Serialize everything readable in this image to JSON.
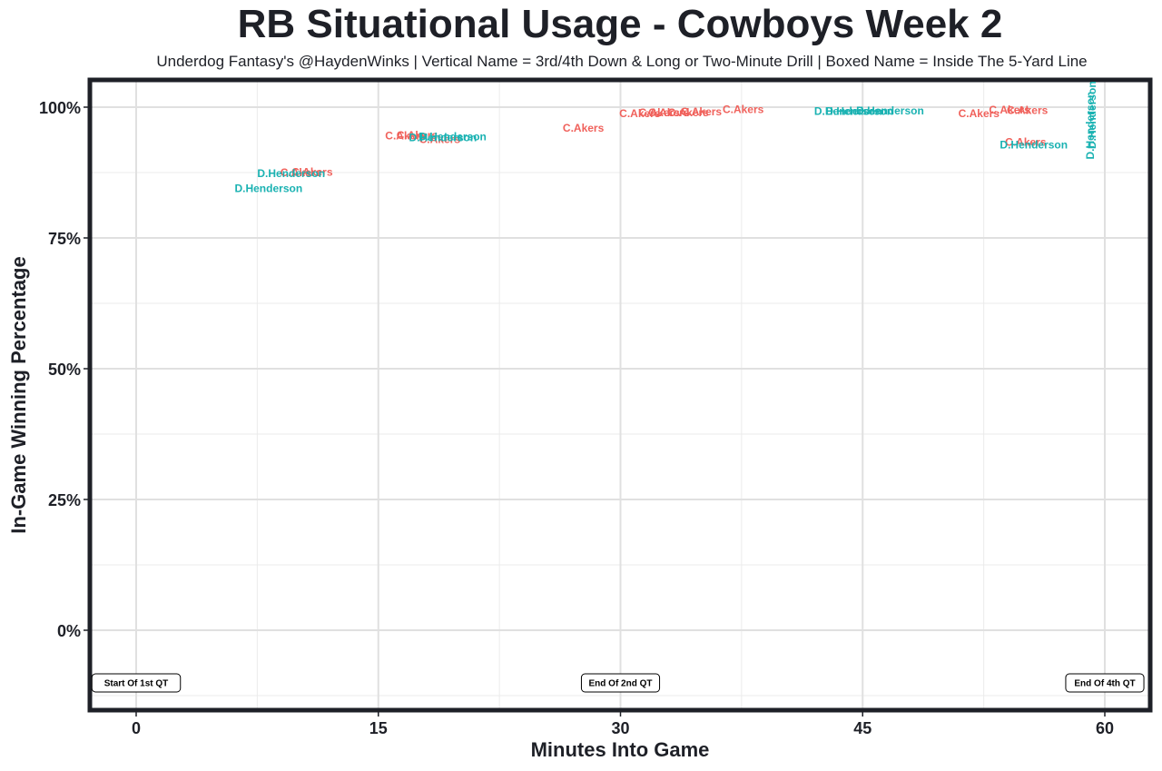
{
  "chart_data": {
    "type": "scatter",
    "title": "RB Situational Usage - Cowboys Week 2",
    "subtitle": "Underdog Fantasy's @HaydenWinks | Vertical Name = 3rd/4th Down & Long or Two-Minute Drill | Boxed Name = Inside The 5-Yard Line",
    "xlabel": "Minutes Into Game",
    "ylabel": "In-Game Winning Percentage",
    "xlim": [
      0,
      60
    ],
    "ylim": [
      -0.15,
      1.05
    ],
    "x_ticks": [
      0,
      15,
      30,
      45,
      60
    ],
    "x_tick_labels": [
      "0",
      "15",
      "30",
      "45",
      "60"
    ],
    "y_ticks": [
      0,
      0.25,
      0.5,
      0.75,
      1.0
    ],
    "y_tick_labels": [
      "0%",
      "25%",
      "50%",
      "75%",
      "100%"
    ],
    "grid": true,
    "series": [
      {
        "name": "C.Akers",
        "color": "#f0615b",
        "points": [
          {
            "x": 10.2,
            "y": 0.875,
            "label": "C.Akers"
          },
          {
            "x": 10.9,
            "y": 0.876,
            "label": "C.Akers"
          },
          {
            "x": 16.7,
            "y": 0.945,
            "label": "C.Akers"
          },
          {
            "x": 17.4,
            "y": 0.946,
            "label": "C.Akers"
          },
          {
            "x": 18.8,
            "y": 0.938,
            "label": "C.Akers"
          },
          {
            "x": 27.7,
            "y": 0.96,
            "label": "C.Akers"
          },
          {
            "x": 31.2,
            "y": 0.988,
            "label": "C.Akers"
          },
          {
            "x": 32.4,
            "y": 0.99,
            "label": "C.Akers"
          },
          {
            "x": 33.0,
            "y": 0.99,
            "label": "C.Akers"
          },
          {
            "x": 34.2,
            "y": 0.99,
            "label": "C.Akers"
          },
          {
            "x": 35.0,
            "y": 0.991,
            "label": "C.Akers"
          },
          {
            "x": 37.6,
            "y": 0.996,
            "label": "C.Akers"
          },
          {
            "x": 52.2,
            "y": 0.988,
            "label": "C.Akers"
          },
          {
            "x": 54.1,
            "y": 0.995,
            "label": "C.Akers"
          },
          {
            "x": 55.2,
            "y": 0.994,
            "label": "C.Akers"
          },
          {
            "x": 55.1,
            "y": 0.933,
            "label": "C.Akers"
          }
        ]
      },
      {
        "name": "D.Henderson",
        "color": "#1ab2b2",
        "points": [
          {
            "x": 9.6,
            "y": 0.873,
            "label": "D.Henderson"
          },
          {
            "x": 8.2,
            "y": 0.845,
            "label": "D.Henderson"
          },
          {
            "x": 19.0,
            "y": 0.942,
            "label": "D.Henderson"
          },
          {
            "x": 19.6,
            "y": 0.944,
            "label": "D.Henderson"
          },
          {
            "x": 44.1,
            "y": 0.992,
            "label": "D.Henderson"
          },
          {
            "x": 44.8,
            "y": 0.992,
            "label": "D.Henderson"
          },
          {
            "x": 46.7,
            "y": 0.993,
            "label": "D.Henderson"
          },
          {
            "x": 55.6,
            "y": 0.928,
            "label": "D.Henderson"
          },
          {
            "x": 59.1,
            "y": 0.965,
            "label": "D.Henderson",
            "vertical": true
          },
          {
            "x": 59.2,
            "y": 0.985,
            "label": "D.Henderson",
            "vertical": true
          }
        ]
      }
    ],
    "annotations": [
      {
        "x": 0,
        "text": "Start Of 1st QT"
      },
      {
        "x": 30,
        "text": "End Of 2nd QT"
      },
      {
        "x": 60,
        "text": "End Of 4th QT"
      }
    ]
  }
}
